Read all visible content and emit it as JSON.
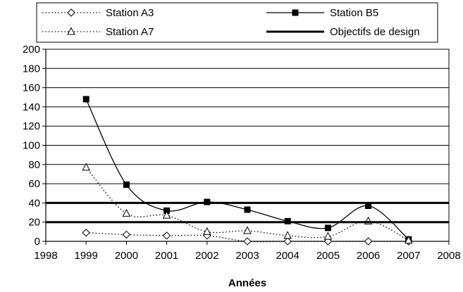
{
  "chart_data": {
    "type": "line",
    "title": "",
    "xlabel": "Années",
    "ylabel": "",
    "xlim": [
      1998,
      2008
    ],
    "ylim": [
      0,
      200
    ],
    "x_ticks": [
      1998,
      1999,
      2000,
      2001,
      2002,
      2003,
      2004,
      2005,
      2006,
      2007,
      2008
    ],
    "y_ticks": [
      0,
      20,
      40,
      60,
      80,
      100,
      120,
      140,
      160,
      180,
      200
    ],
    "grid": "horizontal",
    "legend_position": "top",
    "series": [
      {
        "name": "Station A3",
        "color": "#000000",
        "line": "dotted",
        "marker": "diamond",
        "x": [
          1999,
          2000,
          2001,
          2002,
          2003,
          2004,
          2005,
          2006,
          2007
        ],
        "y": [
          9,
          7,
          6,
          6,
          0,
          0,
          0,
          0,
          0
        ]
      },
      {
        "name": "Station B5",
        "color": "#000000",
        "line": "solid",
        "marker": "square",
        "x": [
          1999,
          2000,
          2001,
          2002,
          2003,
          2004,
          2005,
          2006,
          2007
        ],
        "y": [
          148,
          59,
          32,
          41,
          33,
          21,
          14,
          37,
          2
        ]
      },
      {
        "name": "Station A7",
        "color": "#000000",
        "line": "dotted",
        "marker": "triangle",
        "x": [
          1999,
          2000,
          2001,
          2002,
          2003,
          2004,
          2005,
          2006,
          2007
        ],
        "y": [
          77,
          29,
          27,
          10,
          11,
          6,
          5,
          21,
          1
        ]
      },
      {
        "name": "Objectifs de design",
        "color": "#000000",
        "line": "thick",
        "marker": "none",
        "reference_levels": [
          20,
          40
        ]
      }
    ]
  }
}
